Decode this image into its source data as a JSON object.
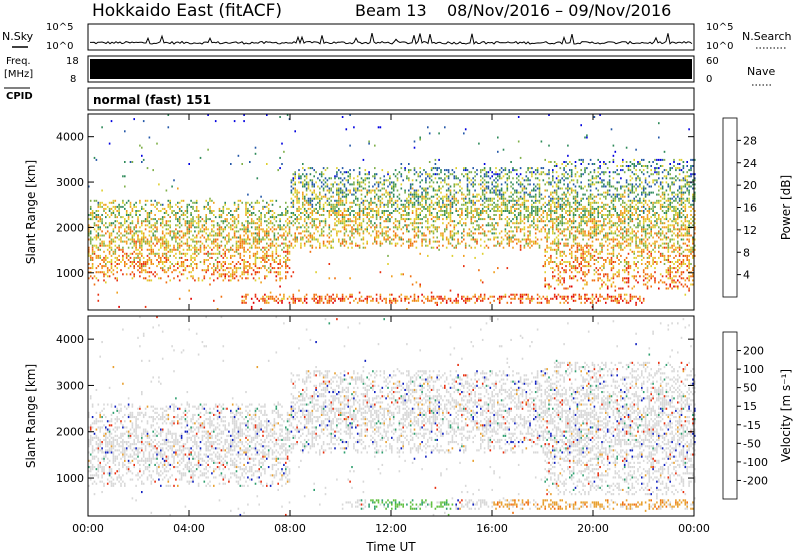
{
  "header": {
    "title": "Hokkaido East (fitACF)",
    "beam": "Beam 13",
    "date_range": "08/Nov/2016 – 09/Nov/2016"
  },
  "strip_labels": {
    "nsky": "N.Sky",
    "freq_line1": "Freq.",
    "freq_line2": "[MHz]",
    "cpid": "CPID",
    "nsearch": "N.Search",
    "nave": "Nave",
    "cpid_text": "normal (fast) 151",
    "nsky_ticks": [
      "10^5",
      "10^0"
    ],
    "nsearch_ticks": [
      "10^5",
      "10^0"
    ],
    "freq_ticks": [
      "18",
      "8"
    ],
    "nave_ticks": [
      "60",
      "0"
    ]
  },
  "chart_data": [
    {
      "type": "heatmap",
      "name": "power-panel",
      "ylabel": "Slant Range [km]",
      "ylim": [
        180,
        4500
      ],
      "yticks": [
        "1000",
        "2000",
        "3000",
        "4000"
      ],
      "xlim_hours": [
        0,
        24
      ],
      "xticks": [
        "00:00",
        "04:00",
        "08:00",
        "12:00",
        "16:00",
        "20:00",
        "00:00"
      ],
      "colorbar": {
        "label": "Power [dB]",
        "ticks": [
          "28",
          "24",
          "20",
          "16",
          "12",
          "8",
          "4"
        ],
        "colors": [
          "#0000e0",
          "#2458a8",
          "#2e8a5a",
          "#7fb04a",
          "#dfd030",
          "#f0a020",
          "#f07010",
          "#e83010",
          "#e00000"
        ]
      },
      "features": [
        {
          "range_km": [
            800,
            2600
          ],
          "time_h": [
            0,
            8
          ]
        },
        {
          "range_km": [
            300,
            500
          ],
          "time_h": [
            6,
            22
          ]
        },
        {
          "range_km": [
            1500,
            3300
          ],
          "time_h": [
            8,
            20
          ]
        },
        {
          "range_km": [
            600,
            3500
          ],
          "time_h": [
            18,
            24
          ]
        }
      ]
    },
    {
      "type": "heatmap",
      "name": "velocity-panel",
      "ylabel": "Slant Range [km]",
      "xlabel": "Time UT",
      "ylim": [
        180,
        4500
      ],
      "yticks": [
        "1000",
        "2000",
        "3000",
        "4000"
      ],
      "xlim_hours": [
        0,
        24
      ],
      "xticks": [
        "00:00",
        "04:00",
        "08:00",
        "12:00",
        "16:00",
        "20:00",
        "00:00"
      ],
      "colorbar": {
        "label": "Velocity [m s⁻¹]",
        "ticks": [
          "200",
          "100",
          "50",
          "15",
          "-15",
          "-50",
          "-100",
          "-200"
        ],
        "colors": [
          "#1020c0",
          "#2060a0",
          "#30a070",
          "#60c040",
          "#d8d8d8",
          "#e8a030",
          "#f07010",
          "#e83010",
          "#e00000"
        ]
      },
      "features": [
        {
          "range_km": [
            800,
            2600
          ],
          "time_h": [
            0,
            8
          ]
        },
        {
          "range_km": [
            300,
            500
          ],
          "time_h": [
            10,
            24
          ]
        },
        {
          "range_km": [
            1500,
            3300
          ],
          "time_h": [
            8,
            20
          ]
        },
        {
          "range_km": [
            600,
            3500
          ],
          "time_h": [
            18,
            24
          ]
        }
      ]
    }
  ]
}
